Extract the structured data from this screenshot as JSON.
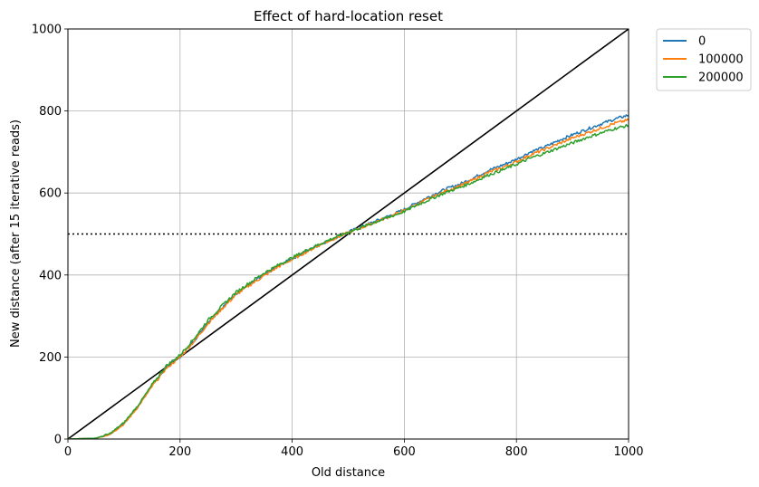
{
  "chart_data": {
    "type": "line",
    "title": "Effect of hard-location reset",
    "xlabel": "Old distance",
    "ylabel": "New distance (after 15 iterative reads)",
    "xlim": [
      0,
      1000
    ],
    "ylim": [
      0,
      1000
    ],
    "xticks": [
      0,
      200,
      400,
      600,
      800,
      1000
    ],
    "yticks": [
      0,
      200,
      400,
      600,
      800,
      1000
    ],
    "grid": true,
    "legend_position": "outside-top-right",
    "reference_lines": [
      {
        "name": "identity",
        "style": "solid",
        "color": "#000000",
        "x": [
          0,
          1000
        ],
        "y": [
          0,
          1000
        ]
      },
      {
        "name": "threshold",
        "style": "dotted",
        "color": "#000000",
        "x": [
          0,
          1000
        ],
        "y": [
          500,
          500
        ]
      }
    ],
    "x": [
      0,
      50,
      75,
      100,
      125,
      150,
      175,
      200,
      225,
      250,
      275,
      300,
      325,
      350,
      375,
      400,
      425,
      450,
      475,
      500,
      525,
      550,
      575,
      600,
      625,
      650,
      675,
      700,
      725,
      750,
      775,
      800,
      825,
      850,
      875,
      900,
      925,
      950,
      975,
      1000
    ],
    "series": [
      {
        "name": "0",
        "color": "#1f77b4",
        "values": [
          0,
          2,
          12,
          38,
          80,
          130,
          175,
          200,
          240,
          285,
          320,
          355,
          378,
          400,
          422,
          440,
          458,
          475,
          490,
          505,
          518,
          532,
          545,
          560,
          578,
          595,
          610,
          622,
          638,
          655,
          668,
          682,
          700,
          712,
          728,
          742,
          755,
          768,
          780,
          790
        ]
      },
      {
        "name": "100000",
        "color": "#ff7f0e",
        "values": [
          0,
          2,
          12,
          36,
          78,
          128,
          172,
          200,
          238,
          282,
          318,
          352,
          376,
          398,
          420,
          438,
          456,
          474,
          489,
          503,
          516,
          530,
          543,
          557,
          574,
          590,
          605,
          618,
          633,
          650,
          662,
          676,
          693,
          706,
          720,
          734,
          746,
          758,
          770,
          778
        ]
      },
      {
        "name": "200000",
        "color": "#2ca02c",
        "values": [
          0,
          2,
          13,
          40,
          82,
          132,
          178,
          205,
          245,
          290,
          325,
          358,
          382,
          405,
          424,
          442,
          460,
          476,
          491,
          504,
          517,
          530,
          542,
          555,
          572,
          587,
          602,
          614,
          628,
          644,
          656,
          670,
          685,
          697,
          710,
          722,
          735,
          746,
          757,
          765
        ]
      }
    ]
  }
}
